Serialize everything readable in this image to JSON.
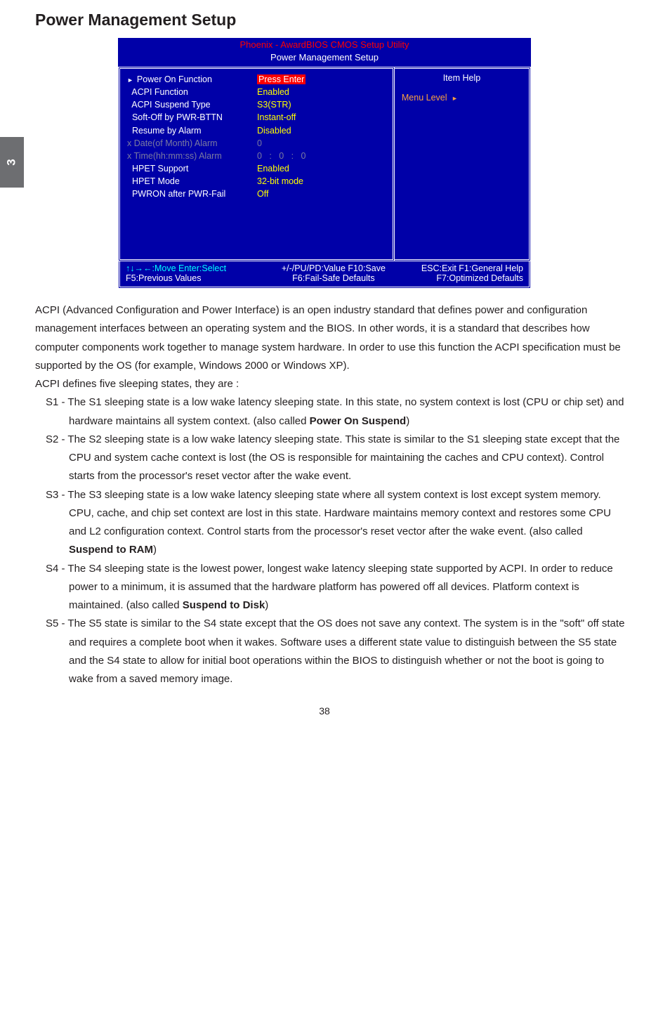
{
  "page": {
    "title": "Power Management Setup",
    "side_tab": "3",
    "page_number": "38"
  },
  "bios": {
    "header": "Phoenix - AwardBIOS CMOS Setup Utility",
    "subheader": "Power Management Setup",
    "rows": [
      {
        "prefix": "tri",
        "label": "Power On Function",
        "label_class": "white",
        "value": "Press Enter",
        "value_class": "redbg"
      },
      {
        "prefix": "  ",
        "label": "ACPI Function",
        "label_class": "white",
        "value": "Enabled",
        "value_class": "yellow"
      },
      {
        "prefix": "  ",
        "label": "ACPI Suspend Type",
        "label_class": "white",
        "value": "S3(STR)",
        "value_class": "yellow"
      },
      {
        "prefix": "  ",
        "label": "Soft-Off by PWR-BTTN",
        "label_class": "white",
        "value": "Instant-off",
        "value_class": "yellow"
      },
      {
        "prefix": "  ",
        "label": "Resume by Alarm",
        "label_class": "white",
        "value": "Disabled",
        "value_class": "yellow"
      },
      {
        "prefix": "x ",
        "label": "Date(of Month) Alarm",
        "label_class": "gray",
        "value": "0",
        "value_class": "gray"
      },
      {
        "prefix": "x ",
        "label": "Time(hh:mm:ss) Alarm",
        "label_class": "gray",
        "value": "0   :   0   :   0",
        "value_class": "gray"
      },
      {
        "prefix": "  ",
        "label": "HPET Support",
        "label_class": "white",
        "value": "Enabled",
        "value_class": "yellow"
      },
      {
        "prefix": "  ",
        "label": "HPET Mode",
        "label_class": "white",
        "value": "32-bit mode",
        "value_class": "yellow"
      },
      {
        "prefix": "  ",
        "label": "PWRON after PWR-Fail",
        "label_class": "white",
        "value": "Off",
        "value_class": "yellow"
      }
    ],
    "right": {
      "item_help": "Item Help",
      "menu_level": "Menu Level  "
    },
    "footer": {
      "l1a": "↑↓→←:Move   Enter:Select",
      "l1b": "+/-/PU/PD:Value   F10:Save",
      "l1c": "ESC:Exit   F1:General Help",
      "l2a": "F5:Previous Values",
      "l2b": "F6:Fail-Safe Defaults",
      "l2c": "F7:Optimized Defaults"
    }
  },
  "text": {
    "intro1": "ACPI (Advanced Configuration and Power Interface) is an open industry standard that defines power and configuration management interfaces between an operating system and the BIOS. In other words, it is a standard that describes how computer components work together to manage system hardware. In order to use this function the ACPI specification must be supported by the OS (for example, Windows 2000 or Windows XP).",
    "intro2": "ACPI defines five sleeping states, they are :",
    "s1a": "S1 - The S1 sleeping state is a low wake latency sleeping state. In this state, no system context is lost (CPU or chip set) and hardware maintains all system context. (also called ",
    "s1b": "Power On Suspend",
    "s1c": ")",
    "s2": "S2 - The S2 sleeping state is a low wake latency sleeping state. This state is similar to the S1 sleeping state except that the CPU and system cache context is lost (the OS is responsible for maintaining the caches and CPU context). Control starts from the processor's reset vector after the wake event.",
    "s3a": "S3 - The S3 sleeping state is a low wake latency sleeping state where all system context is lost except system memory. CPU, cache, and chip set context are lost in this state. Hardware maintains memory context and restores some CPU and L2 configuration context. Control starts from the processor's reset vector after the wake event. (also called ",
    "s3b": "Suspend to RAM",
    "s3c": ")",
    "s4a": "S4 - The S4 sleeping state is the lowest power, longest wake latency sleeping state supported by ACPI. In order to reduce power to a minimum, it is assumed that the hardware platform has powered off all devices. Platform context is maintained. (also called ",
    "s4b": "Suspend to Disk",
    "s4c": ")",
    "s5": "S5 - The S5 state is similar to the S4 state except that the OS does not save any context. The system is in the \"soft\" off state and requires a complete boot when it wakes. Software uses a different state value to distinguish between the S5 state and the S4 state to allow for initial boot operations within the BIOS to distinguish whether or not the boot is going to wake from a saved memory image."
  }
}
